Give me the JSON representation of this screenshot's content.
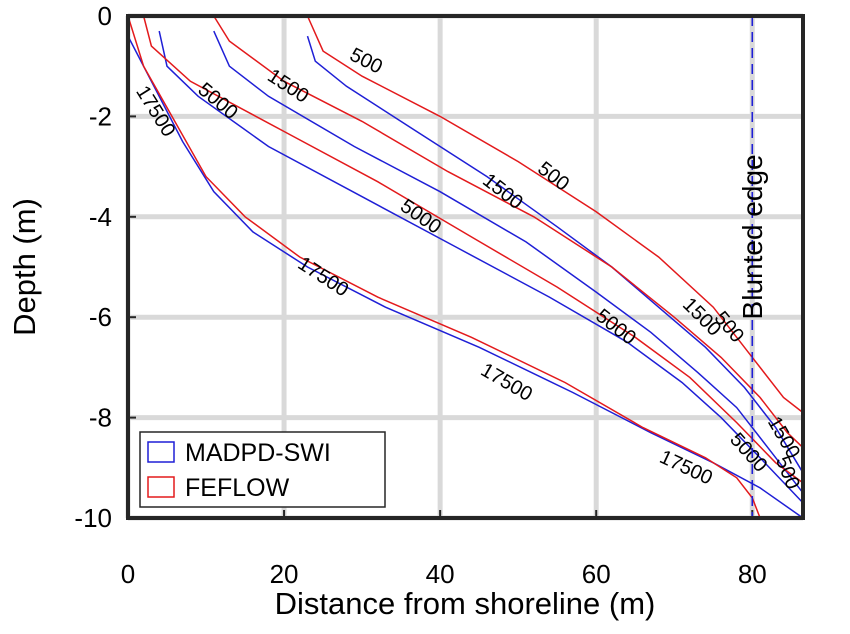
{
  "chart_data": {
    "type": "line",
    "xlabel": "Distance from shoreline (m)",
    "ylabel": "Depth (m)",
    "xlim": [
      0,
      86.5
    ],
    "ylim": [
      -10,
      0
    ],
    "grid": true,
    "xticks": [
      "0",
      "20",
      "40",
      "60",
      "80"
    ],
    "yticks": [
      "0",
      "-2",
      "-4",
      "-6",
      "-8",
      "-10"
    ],
    "legend": {
      "placement": "bottom-left",
      "entries": [
        {
          "label": "MADPD-SWI",
          "color": "#1f1fd6"
        },
        {
          "label": "FEFLOW",
          "color": "#e31a1c"
        }
      ]
    },
    "annotation": {
      "text": "Blunted edge",
      "x": 80
    },
    "series": [
      {
        "model": "MADPD-SWI",
        "contour": "500",
        "color": "#1f1fd6",
        "points": [
          [
            23,
            -0.4
          ],
          [
            24,
            -0.9
          ],
          [
            28,
            -1.4
          ],
          [
            37,
            -2.3
          ],
          [
            46,
            -3.2
          ],
          [
            55,
            -4.2
          ],
          [
            62,
            -5.0
          ],
          [
            68,
            -5.8
          ],
          [
            74,
            -6.6
          ],
          [
            79,
            -7.4
          ],
          [
            83,
            -8.2
          ],
          [
            86.5,
            -9.1
          ]
        ]
      },
      {
        "model": "FEFLOW",
        "contour": "500",
        "color": "#e31a1c",
        "points": [
          [
            23,
            0
          ],
          [
            25,
            -0.7
          ],
          [
            30,
            -1.2
          ],
          [
            40,
            -2.0
          ],
          [
            50,
            -2.9
          ],
          [
            60,
            -3.9
          ],
          [
            68,
            -4.8
          ],
          [
            75,
            -5.8
          ],
          [
            80,
            -6.8
          ],
          [
            84,
            -7.6
          ],
          [
            86.5,
            -7.9
          ]
        ]
      },
      {
        "model": "MADPD-SWI",
        "contour": "1500",
        "color": "#1f1fd6",
        "points": [
          [
            11,
            -0.3
          ],
          [
            13,
            -1.0
          ],
          [
            18,
            -1.6
          ],
          [
            29,
            -2.6
          ],
          [
            40,
            -3.5
          ],
          [
            51,
            -4.5
          ],
          [
            60,
            -5.5
          ],
          [
            67,
            -6.3
          ],
          [
            73,
            -7.1
          ],
          [
            78,
            -7.8
          ],
          [
            82,
            -8.6
          ],
          [
            86.5,
            -9.5
          ]
        ]
      },
      {
        "model": "FEFLOW",
        "contour": "1500",
        "color": "#e31a1c",
        "points": [
          [
            11,
            0
          ],
          [
            13,
            -0.5
          ],
          [
            20,
            -1.3
          ],
          [
            30,
            -2.1
          ],
          [
            41,
            -3.1
          ],
          [
            52,
            -4.0
          ],
          [
            62,
            -5.0
          ],
          [
            70,
            -6.0
          ],
          [
            76,
            -6.8
          ],
          [
            81,
            -7.6
          ],
          [
            84.5,
            -8.3
          ],
          [
            86.5,
            -8.6
          ]
        ]
      },
      {
        "model": "MADPD-SWI",
        "contour": "5000",
        "color": "#1f1fd6",
        "points": [
          [
            4,
            -0.3
          ],
          [
            5,
            -1.0
          ],
          [
            9,
            -1.6
          ],
          [
            18,
            -2.6
          ],
          [
            30,
            -3.6
          ],
          [
            42,
            -4.6
          ],
          [
            54,
            -5.6
          ],
          [
            64,
            -6.5
          ],
          [
            71,
            -7.3
          ],
          [
            76,
            -8.0
          ],
          [
            81,
            -8.8
          ],
          [
            86.5,
            -9.7
          ]
        ]
      },
      {
        "model": "FEFLOW",
        "contour": "5000",
        "color": "#e31a1c",
        "points": [
          [
            2,
            0
          ],
          [
            3,
            -0.6
          ],
          [
            8,
            -1.3
          ],
          [
            20,
            -2.3
          ],
          [
            32,
            -3.3
          ],
          [
            44,
            -4.4
          ],
          [
            55,
            -5.4
          ],
          [
            65,
            -6.4
          ],
          [
            72,
            -7.2
          ],
          [
            78,
            -8.1
          ],
          [
            83,
            -8.9
          ],
          [
            86.5,
            -9.3
          ]
        ]
      },
      {
        "model": "MADPD-SWI",
        "contour": "17500",
        "color": "#1f1fd6",
        "points": [
          [
            0,
            -0.4
          ],
          [
            3,
            -1.3
          ],
          [
            7,
            -2.5
          ],
          [
            11,
            -3.5
          ],
          [
            16,
            -4.3
          ],
          [
            23,
            -5.0
          ],
          [
            33,
            -5.8
          ],
          [
            45,
            -6.6
          ],
          [
            57,
            -7.5
          ],
          [
            67,
            -8.3
          ],
          [
            75,
            -8.9
          ],
          [
            81,
            -9.4
          ],
          [
            86.5,
            -10
          ]
        ]
      },
      {
        "model": "FEFLOW",
        "contour": "17500",
        "color": "#e31a1c",
        "points": [
          [
            0,
            0
          ],
          [
            2,
            -1.0
          ],
          [
            6,
            -2.1
          ],
          [
            10,
            -3.2
          ],
          [
            15,
            -4.0
          ],
          [
            22,
            -4.8
          ],
          [
            32,
            -5.6
          ],
          [
            44,
            -6.4
          ],
          [
            56,
            -7.3
          ],
          [
            66,
            -8.2
          ],
          [
            74,
            -8.8
          ],
          [
            78,
            -9.2
          ],
          [
            80,
            -9.6
          ],
          [
            81,
            -10
          ]
        ]
      }
    ],
    "contour_labels": [
      {
        "text": "500",
        "x": 30.5,
        "y": -0.9,
        "angle": 27
      },
      {
        "text": "500",
        "x": 54.5,
        "y": -3.2,
        "angle": 38
      },
      {
        "text": "500",
        "x": 77,
        "y": -6.2,
        "angle": 50
      },
      {
        "text": "500",
        "x": 84.5,
        "y": -9.1,
        "angle": 68
      },
      {
        "text": "1500",
        "x": 20.5,
        "y": -1.4,
        "angle": 33
      },
      {
        "text": "1500",
        "x": 48,
        "y": -3.5,
        "angle": 38
      },
      {
        "text": "1500",
        "x": 73.5,
        "y": -6.0,
        "angle": 45
      },
      {
        "text": "1500",
        "x": 84,
        "y": -8.4,
        "angle": 60
      },
      {
        "text": "5000",
        "x": 11.5,
        "y": -1.7,
        "angle": 40
      },
      {
        "text": "5000",
        "x": 37.5,
        "y": -4.0,
        "angle": 35
      },
      {
        "text": "5000",
        "x": 62.5,
        "y": -6.2,
        "angle": 38
      },
      {
        "text": "5000",
        "x": 79.5,
        "y": -8.7,
        "angle": 48
      },
      {
        "text": "17500",
        "x": 3.5,
        "y": -1.9,
        "angle": 58
      },
      {
        "text": "17500",
        "x": 25,
        "y": -5.2,
        "angle": 33
      },
      {
        "text": "17500",
        "x": 48.5,
        "y": -7.3,
        "angle": 30
      },
      {
        "text": "17500",
        "x": 71.5,
        "y": -9.0,
        "angle": 25
      }
    ]
  }
}
